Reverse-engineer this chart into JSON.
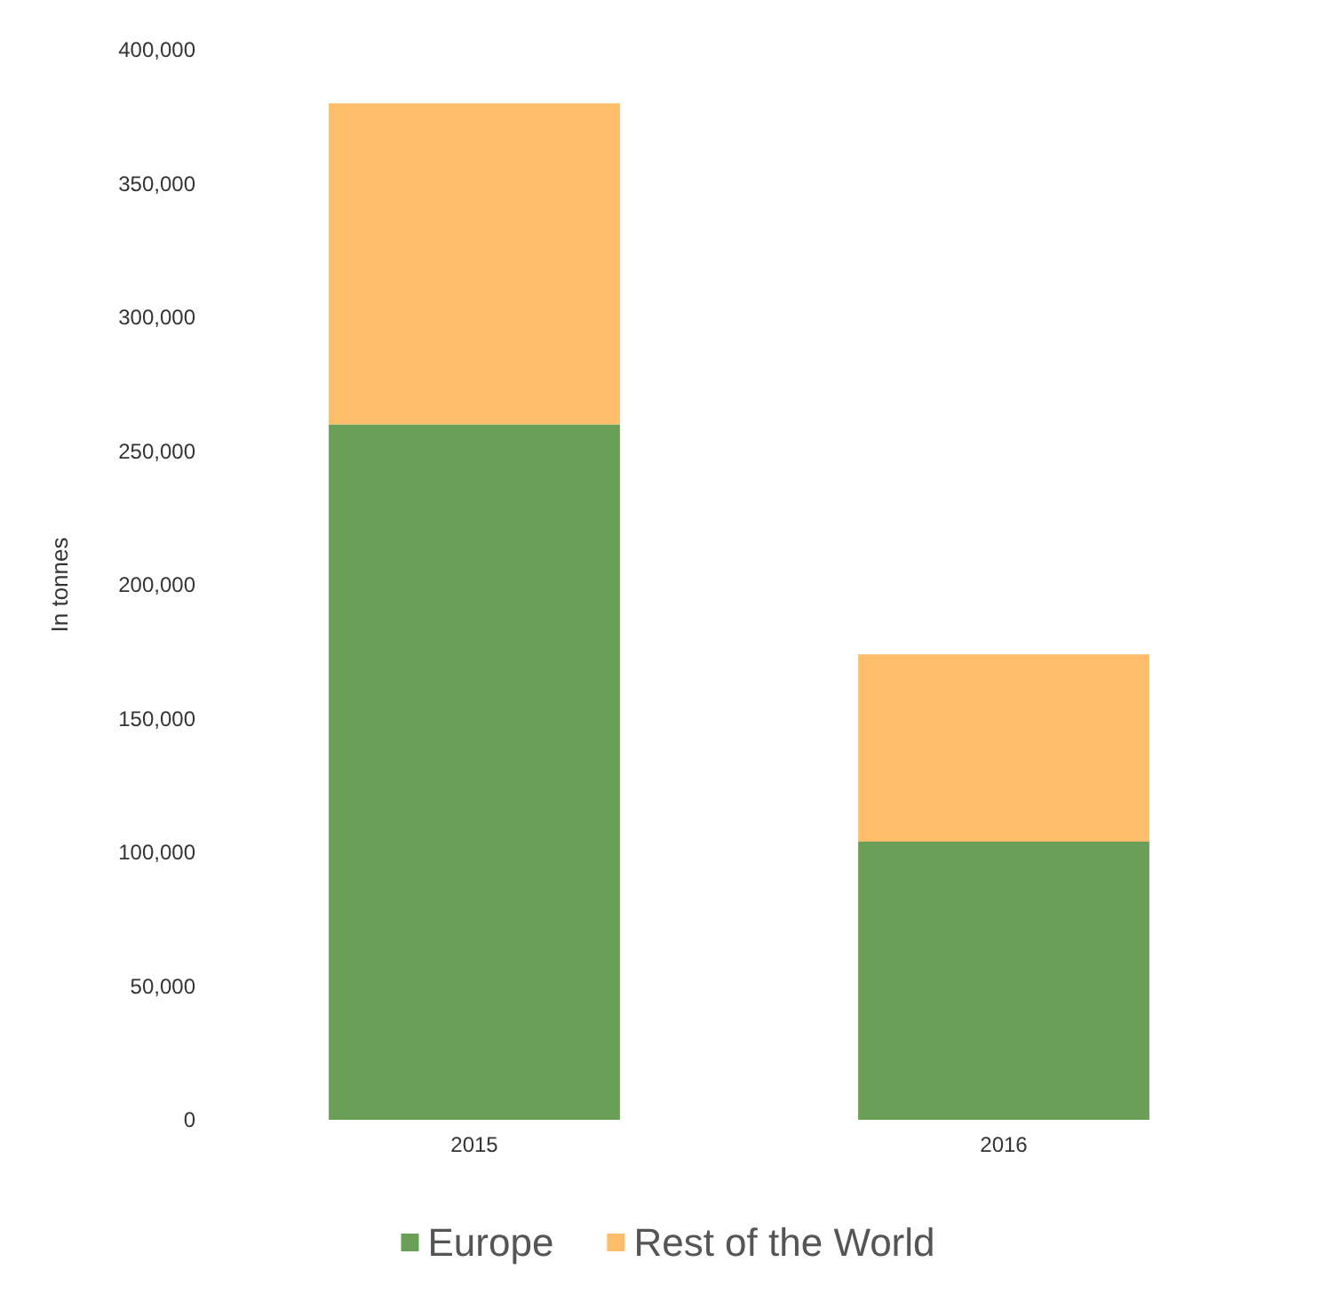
{
  "chart_data": {
    "type": "bar",
    "stacked": true,
    "ylabel": "In tonnes",
    "categories": [
      "2015",
      "2016"
    ],
    "series": [
      {
        "name": "Europe",
        "color": "#6a9f58",
        "values": [
          260000,
          104000
        ]
      },
      {
        "name": "Rest of the World",
        "color": "#fdbd6a",
        "values": [
          120000,
          70000
        ]
      }
    ],
    "ylim": [
      0,
      400000
    ],
    "yticks": [
      0,
      {
        "value": 50000,
        "label": "50,000"
      },
      {
        "value": 100000,
        "label": "100,000"
      },
      {
        "value": 150000,
        "label": "150,000"
      },
      {
        "value": 200000,
        "label": "200,000"
      },
      {
        "value": 250000,
        "label": "250,000"
      },
      {
        "value": 300000,
        "label": "300,000"
      },
      {
        "value": 350000,
        "label": "350,000"
      },
      {
        "value": 400000,
        "label": "400,000"
      }
    ],
    "grid": false,
    "legend": "bottom"
  }
}
